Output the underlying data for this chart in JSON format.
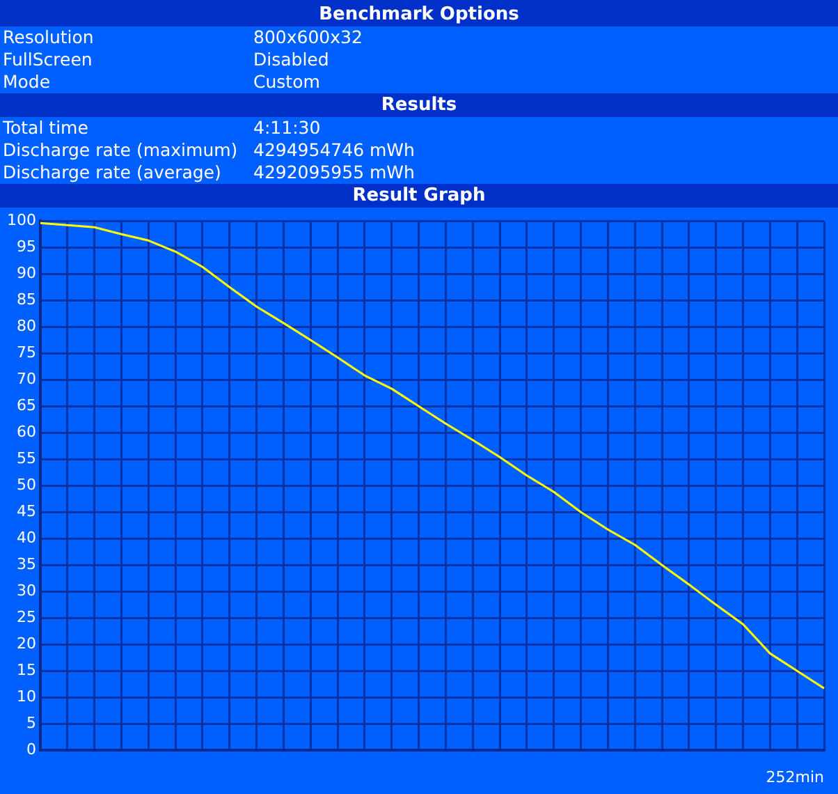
{
  "chart_data": {
    "type": "line",
    "title": "Result Graph",
    "xlabel": "252min",
    "annotations": [
      "Benchmark Options",
      "Resolution",
      "800x600x32",
      "FullScreen",
      "Disabled",
      "Mode",
      "Custom",
      "Results",
      "Total time",
      "4:11:30",
      "Discharge rate (maximum)",
      "4294954746 mWh",
      "Discharge rate (average)",
      "4292095955 mWh"
    ],
    "categories": [
      null,
      null,
      null,
      null,
      null,
      null,
      null,
      null,
      null,
      null,
      null,
      null,
      null,
      null,
      null,
      null,
      null,
      null,
      null,
      null,
      null,
      null,
      null,
      null,
      null,
      null,
      null,
      null,
      null,
      null
    ],
    "series": [
      {
        "color": "#ffff00",
        "values": [
          99.6,
          99.2,
          98.8,
          97.5,
          96.3,
          94.2,
          91.3,
          87.5,
          83.8,
          80.7,
          77.5,
          74.2,
          70.8,
          68.3,
          65,
          61.7,
          58.6,
          55.4,
          51.9,
          48.8,
          45,
          41.7,
          38.8,
          35,
          31.3,
          27.5,
          23.8,
          18.3,
          15,
          11.7
        ]
      }
    ],
    "ylim": [
      0,
      100
    ],
    "yticks": [
      0,
      5,
      10,
      15,
      20,
      25,
      30,
      35,
      40,
      45,
      50,
      55,
      60,
      65,
      70,
      75,
      80,
      85,
      90,
      95,
      100
    ],
    "grid": true,
    "legend": false,
    "marker": "none",
    "line_style": "solid"
  }
}
